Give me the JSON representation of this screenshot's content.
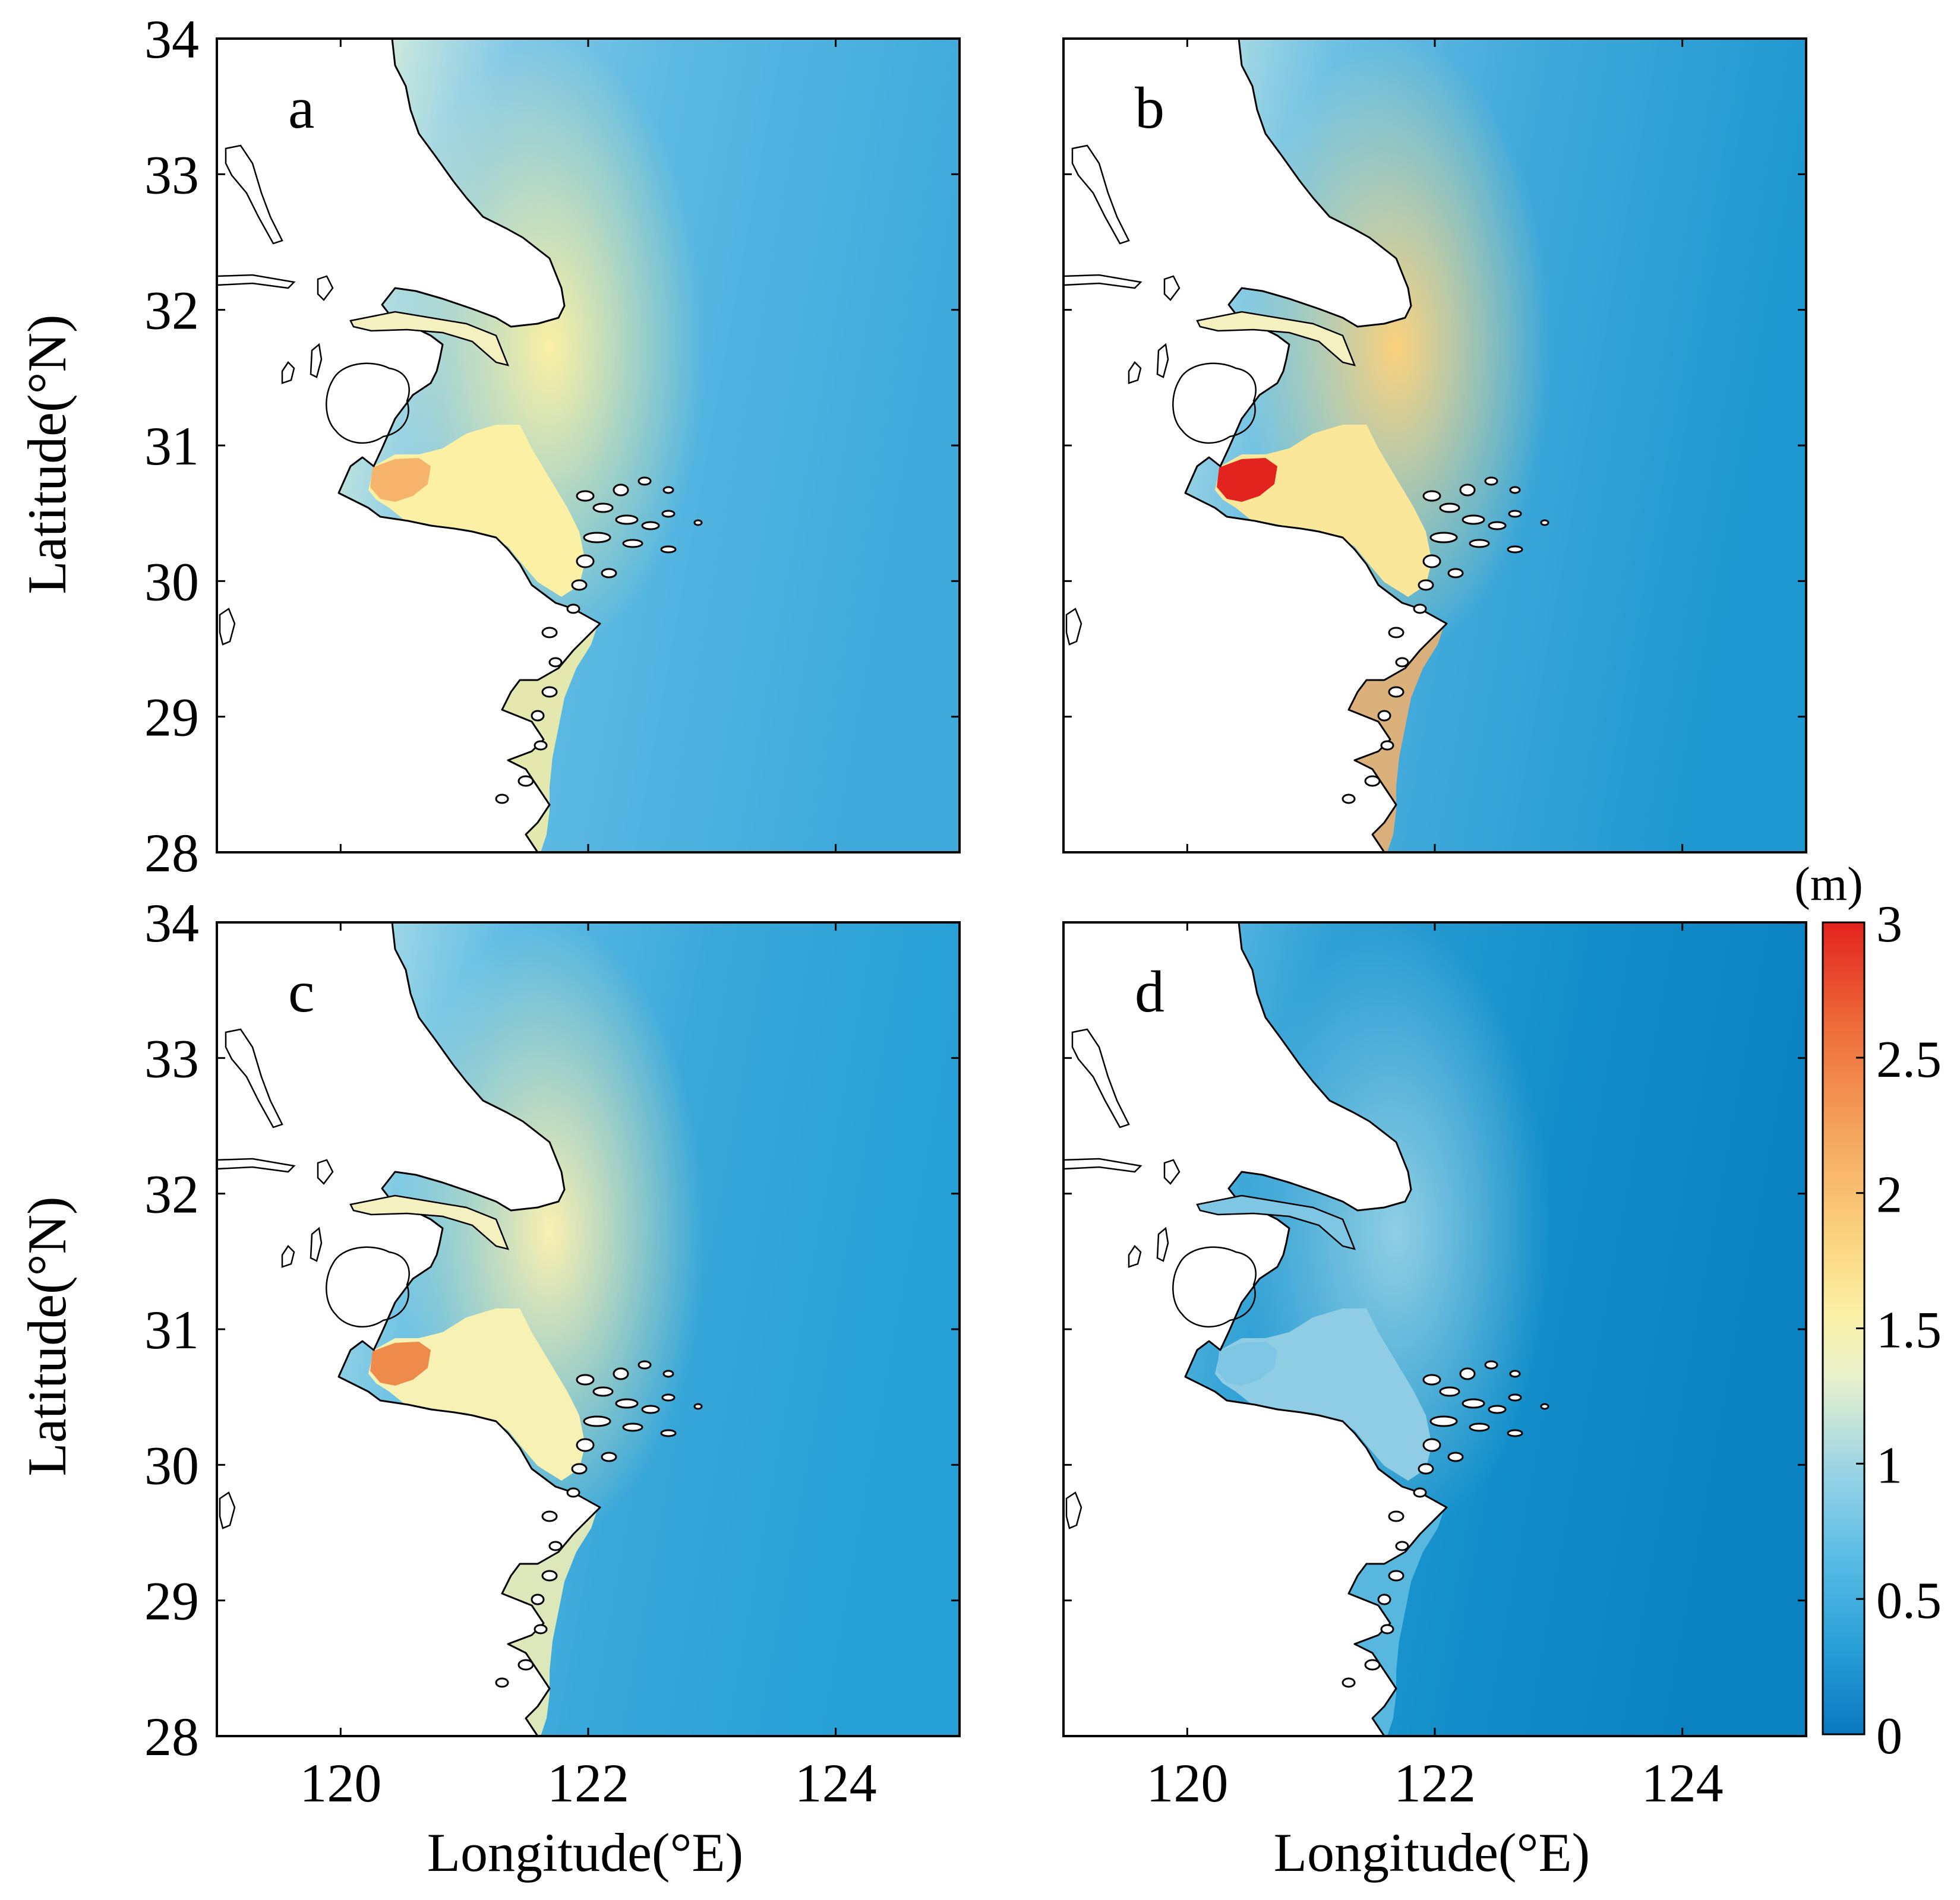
{
  "figure": {
    "panel_letters": [
      "a",
      "b",
      "c",
      "d"
    ],
    "x_axis_label": "Longitude(°E)",
    "y_axis_label": "Latitude(°N)",
    "x_ticks": [
      "120",
      "122",
      "124"
    ],
    "y_ticks": [
      "34",
      "33",
      "32",
      "31",
      "30",
      "29",
      "28"
    ]
  },
  "colorbar": {
    "unit": "(m)",
    "ticks": [
      "3",
      "2.5",
      "2",
      "1.5",
      "1",
      "0.5",
      "0"
    ],
    "colors": [
      "#0a77c0",
      "#2aa0d8",
      "#5bbde6",
      "#9dd5e5",
      "#e9f2cc",
      "#fbf0a4",
      "#fbd07c",
      "#f5a55d",
      "#ee6d3b",
      "#e3231e"
    ]
  },
  "panels": [
    {
      "letter": "a",
      "ocean_base_color": "#43aedc",
      "coastal_peak_color": "#fbf0a4",
      "estuary_color": "#f6b36c"
    },
    {
      "letter": "b",
      "ocean_base_color": "#2ca2d6",
      "coastal_peak_color": "#fbe79a",
      "estuary_color": "#e3231e"
    },
    {
      "letter": "c",
      "ocean_base_color": "#2aa3d8",
      "coastal_peak_color": "#f8f1b4",
      "estuary_color": "#ee8a4a"
    },
    {
      "letter": "d",
      "ocean_base_color": "#0d8ac8",
      "coastal_peak_color": "#8fcde4",
      "estuary_color": "#7ec6e4"
    }
  ]
}
